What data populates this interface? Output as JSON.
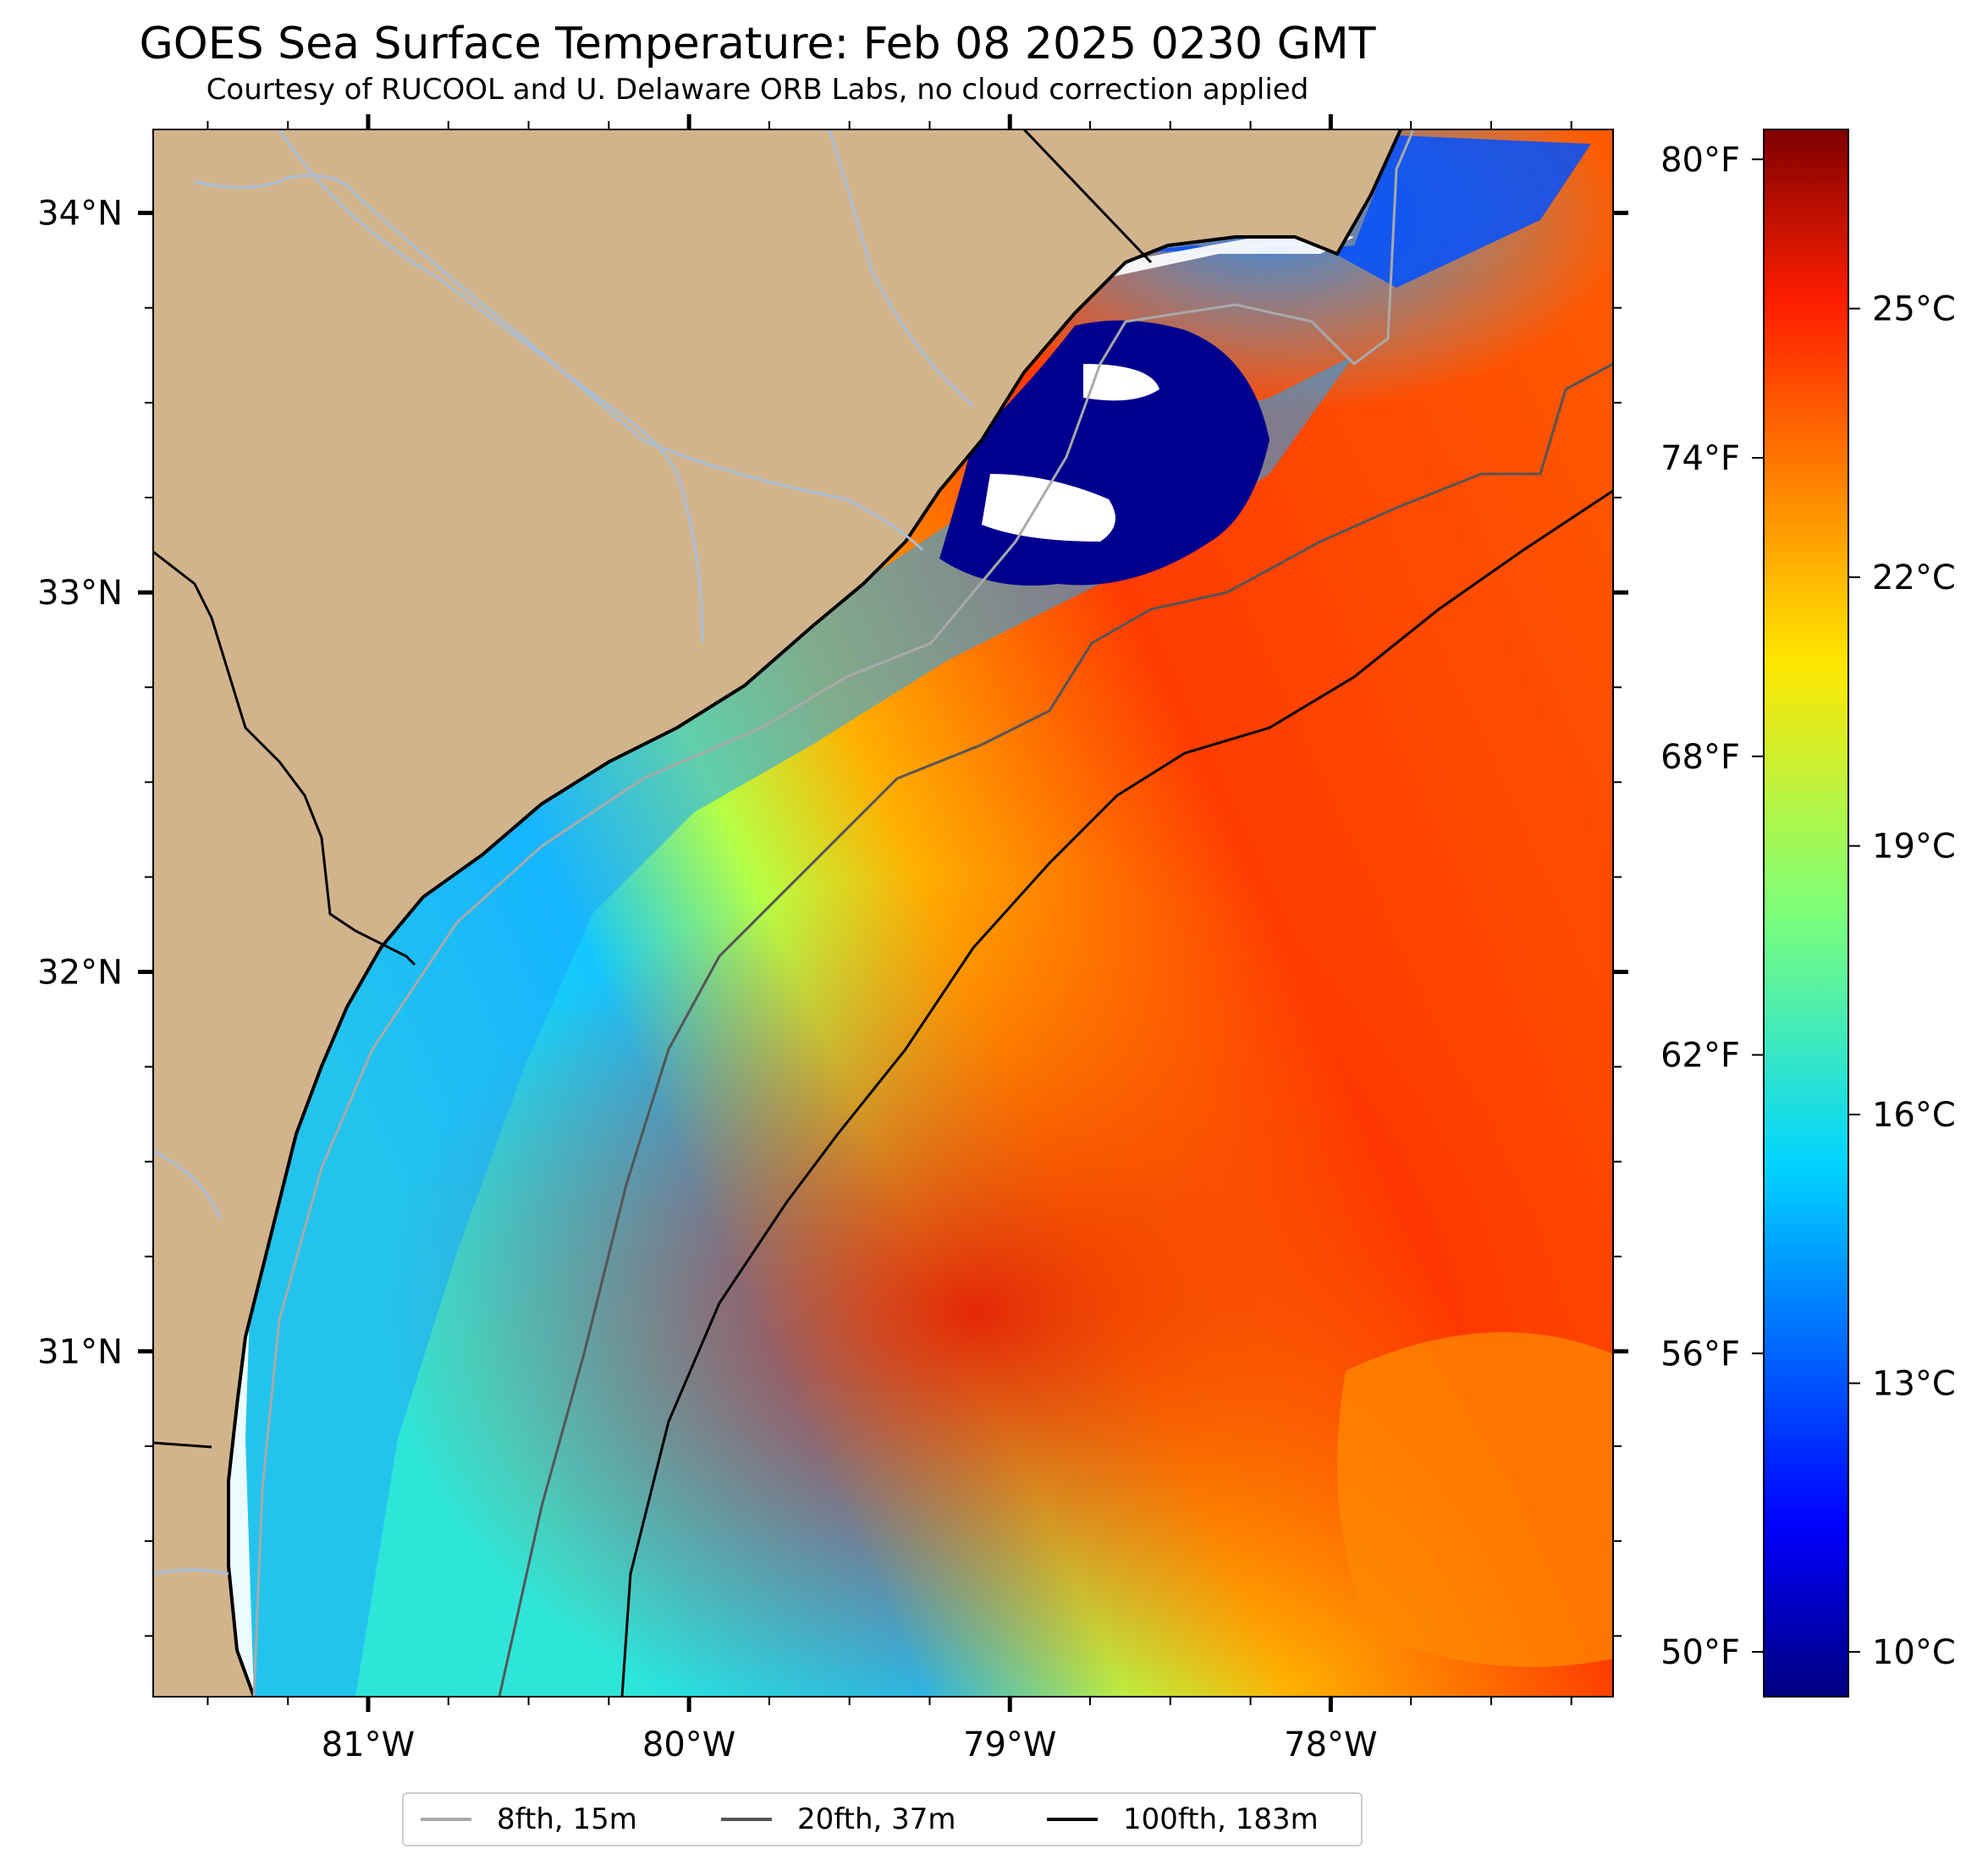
{
  "header": {
    "title": "GOES Sea Surface Temperature: Feb 08 2025 0230 GMT",
    "subtitle": "Courtesy of RUCOOL and U. Delaware ORB Labs, no cloud correction applied"
  },
  "map": {
    "lon_range": [
      -81.67,
      -77.12
    ],
    "lat_range": [
      30.09,
      34.22
    ],
    "lat_ticks": [
      {
        "value": 34,
        "label": "34°N"
      },
      {
        "value": 33,
        "label": "33°N"
      },
      {
        "value": 32,
        "label": "32°N"
      },
      {
        "value": 31,
        "label": "31°N"
      }
    ],
    "lon_ticks": [
      {
        "value": -81,
        "label": "81°W"
      },
      {
        "value": -80,
        "label": "80°W"
      },
      {
        "value": -79,
        "label": "79°W"
      },
      {
        "value": -78,
        "label": "78°W"
      }
    ],
    "colors": {
      "land": "#d2b48c",
      "coastline": "#000000",
      "rivers": "#a7bfd8",
      "clouds": "#ffffff"
    }
  },
  "colorbar": {
    "celsius_range": [
      9.5,
      27.0
    ],
    "celsius_ticks": [
      {
        "value": 25,
        "label": "25°C"
      },
      {
        "value": 22,
        "label": "22°C"
      },
      {
        "value": 19,
        "label": "19°C"
      },
      {
        "value": 16,
        "label": "16°C"
      },
      {
        "value": 13,
        "label": "13°C"
      },
      {
        "value": 10,
        "label": "10°C"
      }
    ],
    "fahrenheit_ticks": [
      {
        "value": 80,
        "label": "80°F"
      },
      {
        "value": 74,
        "label": "74°F"
      },
      {
        "value": 68,
        "label": "68°F"
      },
      {
        "value": 62,
        "label": "62°F"
      },
      {
        "value": 56,
        "label": "56°F"
      },
      {
        "value": 50,
        "label": "50°F"
      }
    ],
    "colormap": "jet"
  },
  "legend": {
    "items": [
      {
        "label": "8fth, 15m",
        "color": "#a9a9a9"
      },
      {
        "label": "20fth, 37m",
        "color": "#555555"
      },
      {
        "label": "100fth, 183m",
        "color": "#000000"
      }
    ]
  }
}
